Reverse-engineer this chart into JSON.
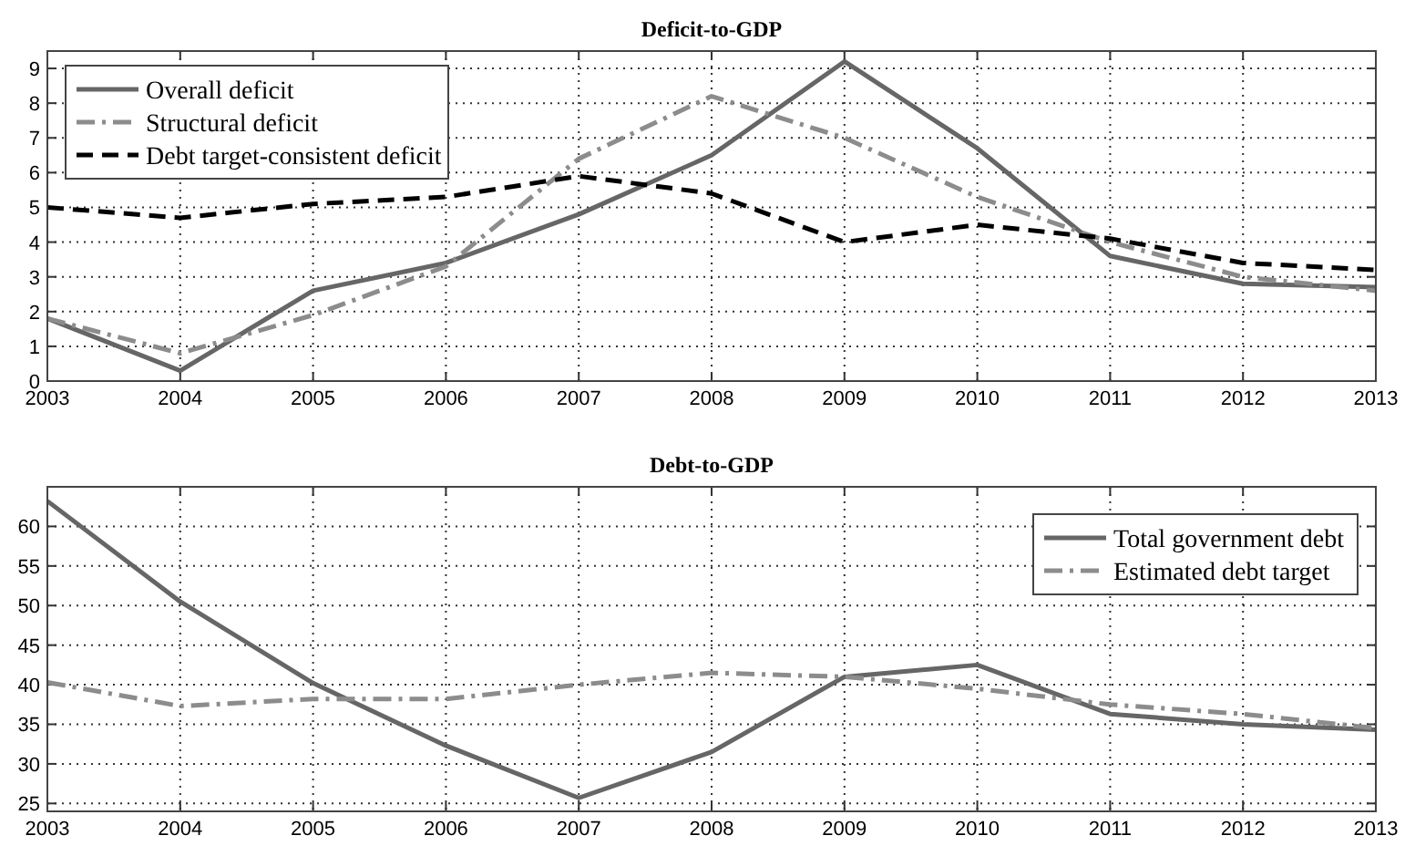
{
  "chart_data": [
    {
      "type": "line",
      "title": "Deficit-to-GDP",
      "x": [
        2003,
        2004,
        2005,
        2006,
        2007,
        2008,
        2009,
        2010,
        2011,
        2012,
        2013
      ],
      "series": [
        {
          "name": "Overall deficit",
          "color": "#666666",
          "line_style": "solid",
          "values": [
            1.8,
            0.3,
            2.6,
            3.4,
            4.8,
            6.5,
            9.2,
            6.7,
            3.6,
            2.8,
            2.7
          ]
        },
        {
          "name": "Structural deficit",
          "color": "#8c8c8c",
          "line_style": "dashdot",
          "values": [
            1.8,
            0.8,
            1.9,
            3.3,
            6.4,
            8.2,
            7.0,
            5.3,
            4.0,
            3.0,
            2.6
          ]
        },
        {
          "name": "Debt target-consistent deficit",
          "color": "#000000",
          "line_style": "dashed",
          "values": [
            5.0,
            4.7,
            5.1,
            5.3,
            5.9,
            5.4,
            4.0,
            4.5,
            4.1,
            3.4,
            3.2
          ]
        }
      ],
      "xlim": [
        2003,
        2013
      ],
      "xticks": [
        2003,
        2004,
        2005,
        2006,
        2007,
        2008,
        2009,
        2010,
        2011,
        2012,
        2013
      ],
      "ylim": [
        0,
        9.5
      ],
      "yticks": [
        0,
        1,
        2,
        3,
        4,
        5,
        6,
        7,
        8,
        9
      ],
      "grid": true,
      "legend": "top left"
    },
    {
      "type": "line",
      "title": "Debt-to-GDP",
      "x": [
        2003,
        2004,
        2005,
        2006,
        2007,
        2008,
        2009,
        2010,
        2011,
        2012,
        2013
      ],
      "series": [
        {
          "name": "Total government debt",
          "color": "#666666",
          "line_style": "solid",
          "values": [
            63.2,
            50.5,
            40.2,
            32.3,
            25.7,
            31.5,
            41.0,
            42.5,
            36.3,
            35.0,
            34.3
          ]
        },
        {
          "name": "Estimated debt target",
          "color": "#8c8c8c",
          "line_style": "dashdot",
          "values": [
            40.3,
            37.3,
            38.2,
            38.2,
            40.0,
            41.5,
            41.0,
            39.5,
            37.5,
            36.3,
            34.5
          ]
        }
      ],
      "xlim": [
        2003,
        2013
      ],
      "xticks": [
        2003,
        2004,
        2005,
        2006,
        2007,
        2008,
        2009,
        2010,
        2011,
        2012,
        2013
      ],
      "ylim": [
        24,
        65
      ],
      "yticks": [
        25,
        30,
        35,
        40,
        45,
        50,
        55,
        60
      ],
      "grid": true,
      "legend": "top right"
    }
  ]
}
